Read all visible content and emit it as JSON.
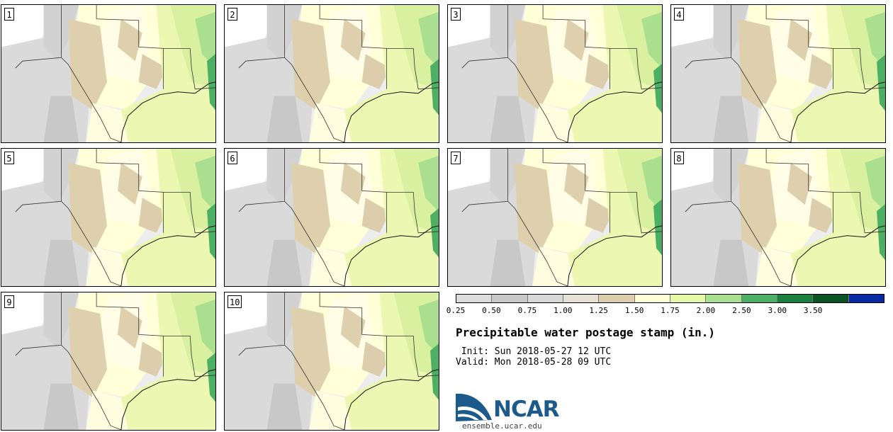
{
  "stamps": [
    {
      "label": "1"
    },
    {
      "label": "2"
    },
    {
      "label": "3"
    },
    {
      "label": "4"
    },
    {
      "label": "5"
    },
    {
      "label": "6"
    },
    {
      "label": "7"
    },
    {
      "label": "8"
    },
    {
      "label": "9"
    },
    {
      "label": "10"
    }
  ],
  "colorbar": {
    "colors": [
      "#dcdcdc",
      "#c8c8c8",
      "#d8d8d8",
      "#e6e1d5",
      "#dccdac",
      "#ffffd6",
      "#e6f8a8",
      "#a9df8e",
      "#4caf64",
      "#1b7f3e",
      "#0b5224",
      "#0a2aa3"
    ],
    "ticks": [
      "0.25",
      "0.50",
      "0.75",
      "1.00",
      "1.25",
      "1.50",
      "1.75",
      "2.00",
      "2.50",
      "3.00",
      "3.50"
    ]
  },
  "title": "Precipitable water postage stamp (in.)",
  "init_line": " Init: Sun 2018-05-27 12 UTC",
  "valid_line": "Valid: Mon 2018-05-28 09 UTC",
  "logo": {
    "word": "NCAR",
    "url": "ensemble.ucar.edu"
  }
}
